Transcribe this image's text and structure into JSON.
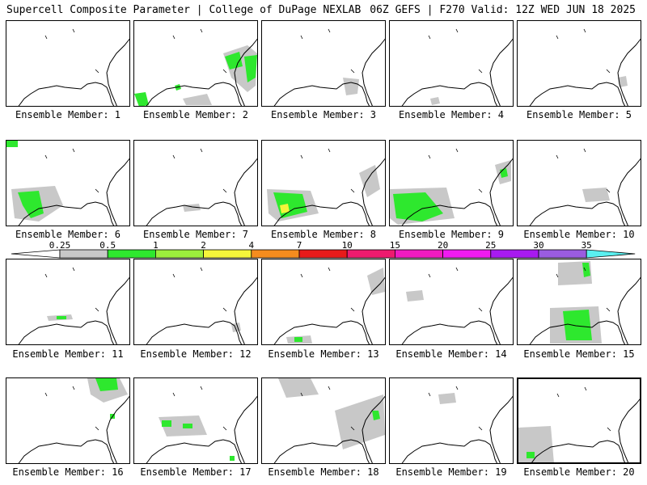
{
  "header": {
    "title": "Supercell Composite Parameter | College of DuPage NEXLAB",
    "valid": "06Z GEFS | F270 Valid: 12Z WED JUN 18 2025"
  },
  "colorbar": {
    "levels": [
      {
        "label": "0.25",
        "color": "#c8c8c8"
      },
      {
        "label": "0.5",
        "color": "#2ee82e"
      },
      {
        "label": "1",
        "color": "#9cee3c"
      },
      {
        "label": "2",
        "color": "#f5f53a"
      },
      {
        "label": "4",
        "color": "#f58c1e"
      },
      {
        "label": "7",
        "color": "#e81a1a"
      },
      {
        "label": "10",
        "color": "#ee1a6e"
      },
      {
        "label": "15",
        "color": "#f01ac0"
      },
      {
        "label": "20",
        "color": "#f01af0"
      },
      {
        "label": "25",
        "color": "#a81af0"
      },
      {
        "label": "30",
        "color": "#9a5ce0"
      },
      {
        "label": "35",
        "color": "#5af0f0"
      }
    ]
  },
  "panels": [
    {
      "label": "Ensemble Member: 1"
    },
    {
      "label": "Ensemble Member: 2"
    },
    {
      "label": "Ensemble Member: 3"
    },
    {
      "label": "Ensemble Member: 4"
    },
    {
      "label": "Ensemble Member: 5"
    },
    {
      "label": "Ensemble Member: 6"
    },
    {
      "label": "Ensemble Member: 7"
    },
    {
      "label": "Ensemble Member: 8"
    },
    {
      "label": "Ensemble Member: 9"
    },
    {
      "label": "Ensemble Member: 10"
    },
    {
      "label": "Ensemble Member: 11"
    },
    {
      "label": "Ensemble Member: 12"
    },
    {
      "label": "Ensemble Member: 13"
    },
    {
      "label": "Ensemble Member: 14"
    },
    {
      "label": "Ensemble Member: 15"
    },
    {
      "label": "Ensemble Member: 16"
    },
    {
      "label": "Ensemble Member: 17"
    },
    {
      "label": "Ensemble Member: 18"
    },
    {
      "label": "Ensemble Member: 19"
    },
    {
      "label": "Ensemble Member: 20"
    }
  ]
}
